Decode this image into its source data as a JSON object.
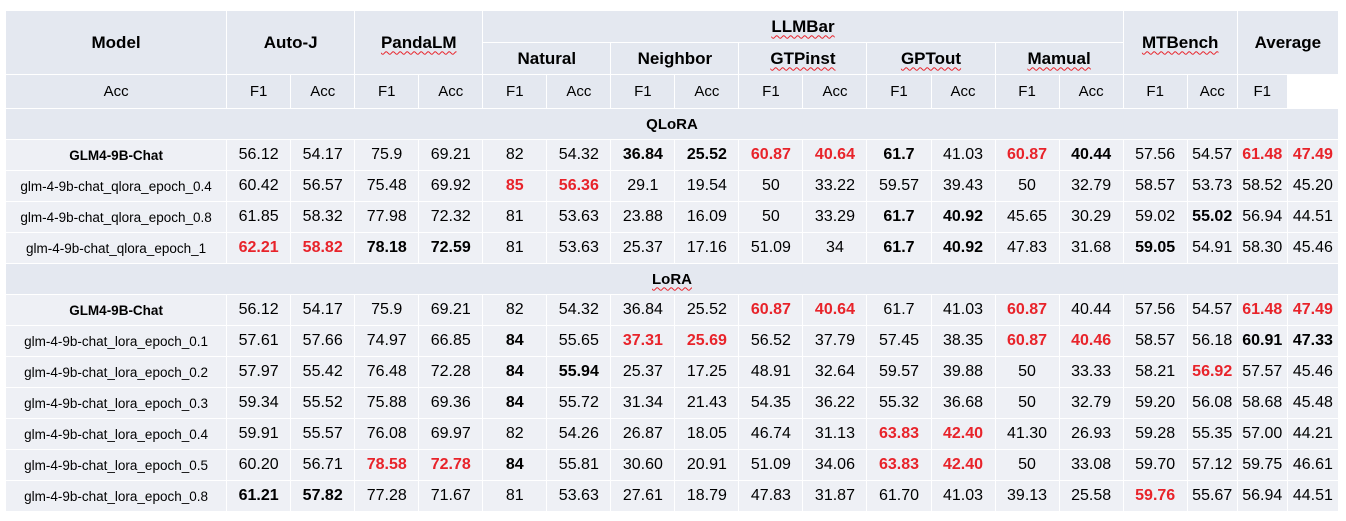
{
  "header": {
    "model": "Model",
    "groups": [
      "Auto-J",
      "PandaLM",
      "LLMBar",
      "MTBench",
      "Average"
    ],
    "llmbar_subgroups": [
      "Natural",
      "Neighbor",
      "GTPinst",
      "GPTout",
      "Mamual"
    ],
    "metrics": [
      "Acc",
      "F1"
    ]
  },
  "sections": [
    {
      "title": "QLoRA",
      "rows": [
        {
          "name": "GLM4-9B-Chat",
          "name_style": "bold",
          "values": [
            "56.12",
            "54.17",
            "75.9",
            "69.21",
            "82",
            "54.32",
            "36.84",
            "25.52",
            "60.87",
            "40.64",
            "61.7",
            "41.03",
            "60.87",
            "40.44",
            "57.56",
            "54.57",
            "61.48",
            "47.49"
          ],
          "styles": [
            "",
            "",
            "",
            "",
            "",
            "",
            "b",
            "b",
            "r",
            "r",
            "b",
            "",
            "r",
            "b",
            "",
            "",
            "r",
            "r"
          ]
        },
        {
          "name": "glm-4-9b-chat_qlora_epoch_0.4",
          "name_style": "",
          "values": [
            "60.42",
            "56.57",
            "75.48",
            "69.92",
            "85",
            "56.36",
            "29.1",
            "19.54",
            "50",
            "33.22",
            "59.57",
            "39.43",
            "50",
            "32.79",
            "58.57",
            "53.73",
            "58.52",
            "45.20"
          ],
          "styles": [
            "",
            "",
            "",
            "",
            "r",
            "r",
            "",
            "",
            "",
            "",
            "",
            "",
            "",
            "",
            "",
            "",
            "",
            ""
          ]
        },
        {
          "name": "glm-4-9b-chat_qlora_epoch_0.8",
          "name_style": "",
          "values": [
            "61.85",
            "58.32",
            "77.98",
            "72.32",
            "81",
            "53.63",
            "23.88",
            "16.09",
            "50",
            "33.29",
            "61.7",
            "40.92",
            "45.65",
            "30.29",
            "59.02",
            "55.02",
            "56.94",
            "44.51"
          ],
          "styles": [
            "",
            "",
            "",
            "",
            "",
            "",
            "",
            "",
            "",
            "",
            "b",
            "b",
            "",
            "",
            "",
            "b",
            "",
            ""
          ]
        },
        {
          "name": "glm-4-9b-chat_qlora_epoch_1",
          "name_style": "",
          "values": [
            "62.21",
            "58.82",
            "78.18",
            "72.59",
            "81",
            "53.63",
            "25.37",
            "17.16",
            "51.09",
            "34",
            "61.7",
            "40.92",
            "47.83",
            "31.68",
            "59.05",
            "54.91",
            "58.30",
            "45.46"
          ],
          "styles": [
            "r",
            "r",
            "b",
            "b",
            "",
            "",
            "",
            "",
            "",
            "",
            "b",
            "b",
            "",
            "",
            "b",
            "",
            "",
            ""
          ]
        }
      ]
    },
    {
      "title": "LoRA",
      "rows": [
        {
          "name": "GLM4-9B-Chat",
          "name_style": "bold",
          "values": [
            "56.12",
            "54.17",
            "75.9",
            "69.21",
            "82",
            "54.32",
            "36.84",
            "25.52",
            "60.87",
            "40.64",
            "61.7",
            "41.03",
            "60.87",
            "40.44",
            "57.56",
            "54.57",
            "61.48",
            "47.49"
          ],
          "styles": [
            "",
            "",
            "",
            "",
            "",
            "",
            "",
            "",
            "r",
            "r",
            "",
            "",
            "r",
            "",
            "",
            "",
            "r",
            "r"
          ]
        },
        {
          "name": "glm-4-9b-chat_lora_epoch_0.1",
          "name_style": "",
          "values": [
            "57.61",
            "57.66",
            "74.97",
            "66.85",
            "84",
            "55.65",
            "37.31",
            "25.69",
            "56.52",
            "37.79",
            "57.45",
            "38.35",
            "60.87",
            "40.46",
            "58.57",
            "56.18",
            "60.91",
            "47.33"
          ],
          "styles": [
            "",
            "",
            "",
            "",
            "b",
            "",
            "r",
            "r",
            "",
            "",
            "",
            "",
            "r",
            "r",
            "",
            "",
            "b",
            "b"
          ]
        },
        {
          "name": "glm-4-9b-chat_lora_epoch_0.2",
          "name_style": "",
          "values": [
            "57.97",
            "55.42",
            "76.48",
            "72.28",
            "84",
            "55.94",
            "25.37",
            "17.25",
            "48.91",
            "32.64",
            "59.57",
            "39.88",
            "50",
            "33.33",
            "58.21",
            "56.92",
            "57.57",
            "45.46"
          ],
          "styles": [
            "",
            "",
            "",
            "",
            "b",
            "b",
            "",
            "",
            "",
            "",
            "",
            "",
            "",
            "",
            "",
            "r",
            "",
            ""
          ]
        },
        {
          "name": "glm-4-9b-chat_lora_epoch_0.3",
          "name_style": "",
          "values": [
            "59.34",
            "55.52",
            "75.88",
            "69.36",
            "84",
            "55.72",
            "31.34",
            "21.43",
            "54.35",
            "36.22",
            "55.32",
            "36.68",
            "50",
            "32.79",
            "59.20",
            "56.08",
            "58.68",
            "45.48"
          ],
          "styles": [
            "",
            "",
            "",
            "",
            "b",
            "",
            "",
            "",
            "",
            "",
            "",
            "",
            "",
            "",
            "",
            "",
            "",
            ""
          ]
        },
        {
          "name": "glm-4-9b-chat_lora_epoch_0.4",
          "name_style": "",
          "values": [
            "59.91",
            "55.57",
            "76.08",
            "69.97",
            "82",
            "54.26",
            "26.87",
            "18.05",
            "46.74",
            "31.13",
            "63.83",
            "42.40",
            "41.30",
            "26.93",
            "59.28",
            "55.35",
            "57.00",
            "44.21"
          ],
          "styles": [
            "",
            "",
            "",
            "",
            "",
            "",
            "",
            "",
            "",
            "",
            "r",
            "r",
            "",
            "",
            "",
            "",
            "",
            ""
          ]
        },
        {
          "name": "glm-4-9b-chat_lora_epoch_0.5",
          "name_style": "",
          "values": [
            "60.20",
            "56.71",
            "78.58",
            "72.78",
            "84",
            "55.81",
            "30.60",
            "20.91",
            "51.09",
            "34.06",
            "63.83",
            "42.40",
            "50",
            "33.08",
            "59.70",
            "57.12",
            "59.75",
            "46.61"
          ],
          "styles": [
            "",
            "",
            "r",
            "r",
            "b",
            "",
            "",
            "",
            "",
            "",
            "r",
            "r",
            "",
            "",
            "",
            "",
            "",
            ""
          ]
        },
        {
          "name": "glm-4-9b-chat_lora_epoch_0.8",
          "name_style": "",
          "values": [
            "61.21",
            "57.82",
            "77.28",
            "71.67",
            "81",
            "53.63",
            "27.61",
            "18.79",
            "47.83",
            "31.87",
            "61.70",
            "41.03",
            "39.13",
            "25.58",
            "59.76",
            "55.67",
            "56.94",
            "44.51"
          ],
          "styles": [
            "b",
            "b",
            "",
            "",
            "",
            "",
            "",
            "",
            "",
            "",
            "",
            "",
            "",
            "",
            "r",
            "",
            "",
            ""
          ]
        }
      ]
    }
  ]
}
